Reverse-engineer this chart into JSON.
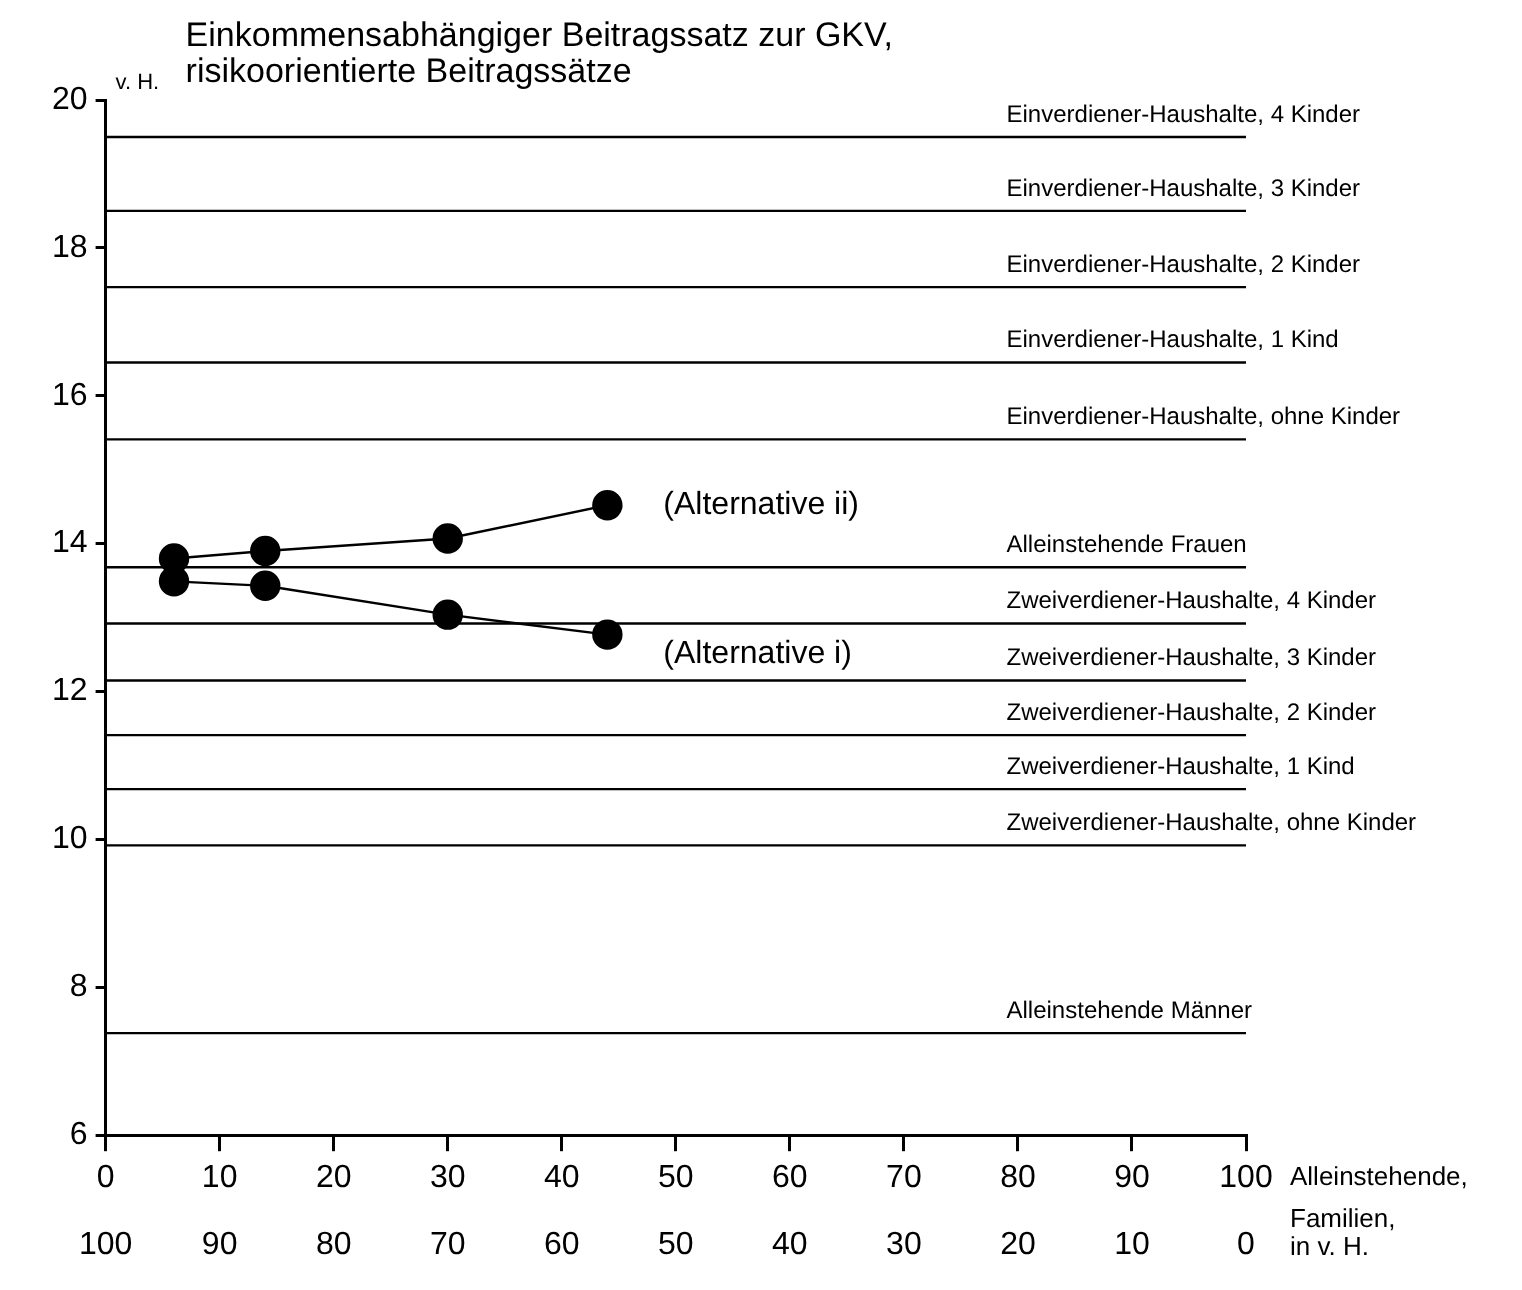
{
  "chart_data": {
    "type": "line",
    "title": "Einkommensabhängiger Beitragssatz zur GKV, risikoorientierte Beitragssätze",
    "ylabel": "v. H.",
    "xlabel": "Alleinstehende,",
    "x2label": "Familien, in v. H.",
    "xlim": [
      0,
      100
    ],
    "xticks": [
      0,
      10,
      20,
      30,
      40,
      50,
      60,
      70,
      80,
      90,
      100
    ],
    "x2lim": [
      100,
      0
    ],
    "x2ticks": [
      100,
      90,
      80,
      70,
      60,
      50,
      40,
      30,
      20,
      10,
      0
    ],
    "ylim": [
      6,
      20
    ],
    "yticks": [
      6,
      8,
      10,
      12,
      14,
      16,
      18,
      20
    ],
    "grid": false,
    "legend": false,
    "marker": "circle",
    "series": [
      {
        "name": "(Alternative ii)",
        "color": "#000000",
        "x": [
          6,
          14,
          30,
          44
        ],
        "values": [
          13.8,
          13.9,
          14.07,
          14.52
        ]
      },
      {
        "name": "(Alternative i)",
        "color": "#000000",
        "x": [
          6,
          14,
          30,
          44
        ],
        "values": [
          13.49,
          13.43,
          13.04,
          12.77
        ]
      }
    ],
    "ref_lines": [
      {
        "axis": "y",
        "value": 19.5,
        "label": "Einverdiener-Haushalte, 4 Kinder",
        "color": "#000000"
      },
      {
        "axis": "y",
        "value": 18.5,
        "label": "Einverdiener-Haushalte, 3 Kinder",
        "color": "#000000"
      },
      {
        "axis": "y",
        "value": 17.47,
        "label": "Einverdiener-Haushalte, 2 Kinder",
        "color": "#000000"
      },
      {
        "axis": "y",
        "value": 16.45,
        "label": "Einverdiener-Haushalte, 1 Kind",
        "color": "#000000"
      },
      {
        "axis": "y",
        "value": 15.41,
        "label": "Einverdiener-Haushalte, ohne Kinder",
        "color": "#000000"
      },
      {
        "axis": "y",
        "value": 13.68,
        "label": "Alleinstehende Frauen",
        "color": "#000000"
      },
      {
        "axis": "y",
        "value": 12.92,
        "label": "Zweiverdiener-Haushalte, 4 Kinder",
        "color": "#000000"
      },
      {
        "axis": "y",
        "value": 12.15,
        "label": "Zweiverdiener-Haushalte, 3 Kinder",
        "color": "#000000"
      },
      {
        "axis": "y",
        "value": 11.41,
        "label": "Zweiverdiener-Haushalte, 2 Kinder",
        "color": "#000000"
      },
      {
        "axis": "y",
        "value": 10.68,
        "label": "Zweiverdiener-Haushalte, 1 Kind",
        "color": "#000000"
      },
      {
        "axis": "y",
        "value": 9.92,
        "label": "Zweiverdiener-Haushalte, ohne Kinder",
        "color": "#000000"
      },
      {
        "axis": "y",
        "value": 7.38,
        "label": "Alleinstehende Männer",
        "color": "#000000"
      }
    ]
  }
}
